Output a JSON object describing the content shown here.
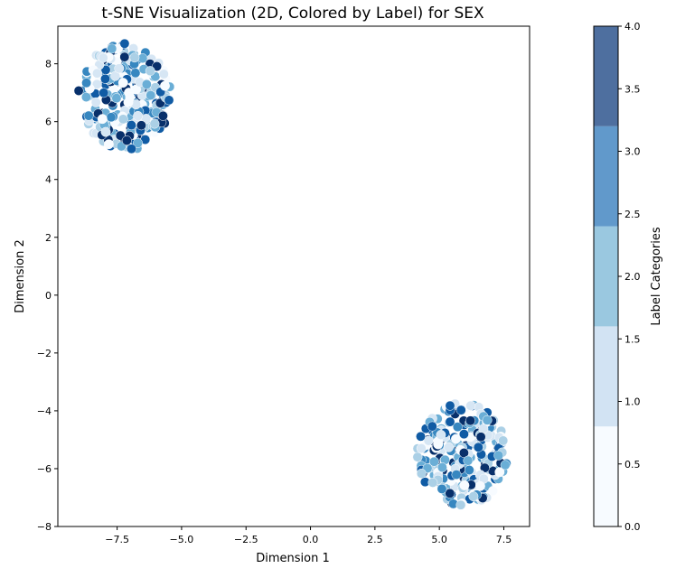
{
  "chart_data": {
    "type": "scatter",
    "title": "t-SNE Visualization (2D, Colored by Label) for SEX",
    "xlabel": "Dimension 1",
    "ylabel": "Dimension 2",
    "xlim": [
      -9.8,
      8.5
    ],
    "ylim": [
      -8,
      9.3
    ],
    "xticks": [
      -7.5,
      -5.0,
      -2.5,
      0.0,
      2.5,
      5.0,
      7.5
    ],
    "xtick_labels": [
      "−7.5",
      "−5.0",
      "−2.5",
      "0.0",
      "2.5",
      "5.0",
      "7.5"
    ],
    "yticks": [
      -8,
      -6,
      -4,
      -2,
      0,
      2,
      4,
      6,
      8
    ],
    "ytick_labels": [
      "−8",
      "−6",
      "−4",
      "−2",
      "0",
      "2",
      "4",
      "6",
      "8"
    ],
    "grid": false,
    "clusters": [
      {
        "center": [
          -7.2,
          6.85
        ],
        "radius": 1.85,
        "count": 300
      },
      {
        "center": [
          5.9,
          -5.5
        ],
        "radius": 1.8,
        "count": 260
      }
    ],
    "colorbar": {
      "label": "Label Categories",
      "range": [
        0.0,
        4.0
      ],
      "ticks": [
        0.0,
        0.5,
        1.0,
        1.5,
        2.0,
        2.5,
        3.0,
        3.5,
        4.0
      ],
      "tick_labels": [
        "0.0",
        "0.5",
        "1.0",
        "1.5",
        "2.0",
        "2.5",
        "3.0",
        "3.5",
        "4.0"
      ],
      "bands": [
        {
          "from": 0.0,
          "to": 0.8,
          "color": "#f7fbff"
        },
        {
          "from": 0.8,
          "to": 1.6,
          "color": "#d2e3f3"
        },
        {
          "from": 1.6,
          "to": 2.4,
          "color": "#9ac8e0"
        },
        {
          "from": 2.4,
          "to": 3.2,
          "color": "#6199cb"
        },
        {
          "from": 3.2,
          "to": 4.0,
          "color": "#4e6f9f"
        }
      ]
    },
    "point_palette": [
      "#f7fbff",
      "#d6e6f4",
      "#abd0e6",
      "#6aaed6",
      "#3787c0",
      "#105ba4",
      "#08306b"
    ]
  }
}
